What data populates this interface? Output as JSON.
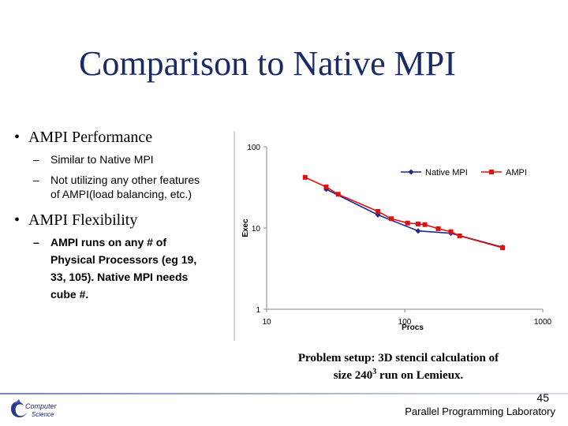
{
  "slide": {
    "title": "Comparison to Native MPI",
    "bullets": [
      {
        "text": "AMPI Performance",
        "subs": [
          "Similar to Native MPI",
          "Not utilizing any other features",
          "of AMPI(load balancing, etc.)"
        ]
      },
      {
        "text": "AMPI Flexibility",
        "subs": [
          "AMPI runs on any # of",
          "Physical Processors (eg 19,",
          "33, 105). Native MPI needs",
          "cube #."
        ]
      }
    ],
    "caption_line1": "Problem setup: 3D stencil calculation of",
    "caption_line2_pre": "size 240",
    "caption_line2_sup": "3",
    "caption_line2_post": " run on Lemieux.",
    "page_number": "45",
    "lab_name": "Parallel Programming Laboratory",
    "logo_text_1": "Computer",
    "logo_text_2": "Science"
  },
  "chart_data": {
    "type": "line",
    "xscale": "log",
    "yscale": "log",
    "xlim": [
      10,
      1000
    ],
    "ylim": [
      1,
      100
    ],
    "xticks": [
      "10",
      "100",
      "1000"
    ],
    "yticks": [
      "1",
      "10",
      "100"
    ],
    "xlabel": "Procs",
    "ylabel": "Exec",
    "legend_position": "top-right",
    "grid": false,
    "series": [
      {
        "name": "Native MPI",
        "color": "#1f2a8a",
        "marker": "diamond",
        "x": [
          27,
          64,
          125,
          216,
          512
        ],
        "y": [
          30,
          14.5,
          9.2,
          8.6,
          5.8
        ]
      },
      {
        "name": "AMPI",
        "color": "#e01010",
        "marker": "square",
        "x": [
          19,
          27,
          33,
          64,
          80,
          105,
          125,
          140,
          175,
          216,
          250,
          512
        ],
        "y": [
          42,
          32,
          26,
          16,
          13,
          11.5,
          11.2,
          11,
          9.8,
          9,
          8,
          5.7
        ]
      }
    ]
  }
}
